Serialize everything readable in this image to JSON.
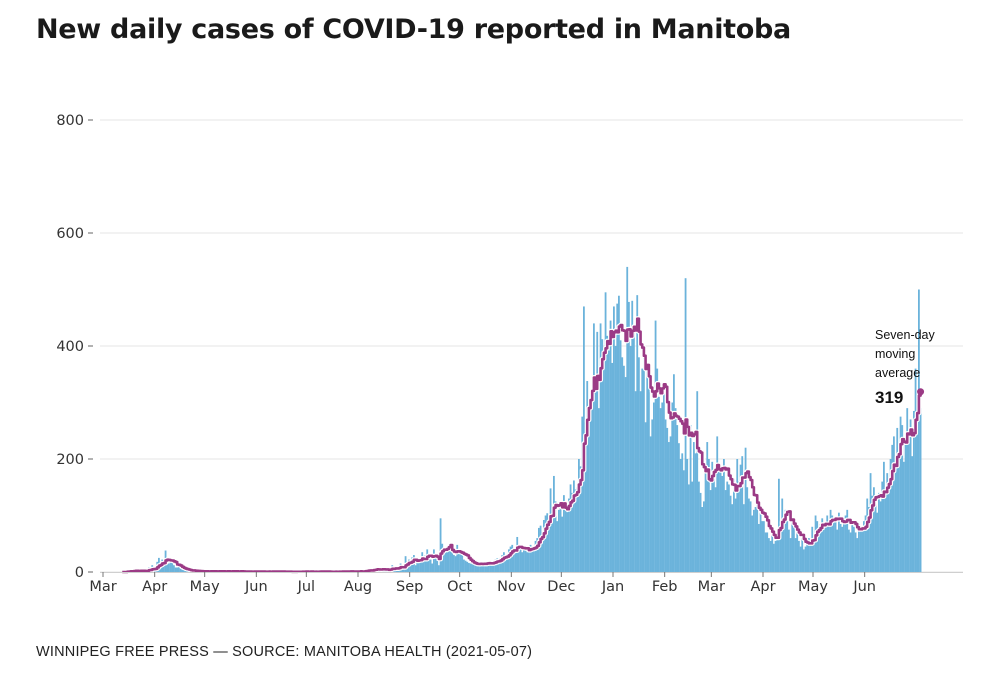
{
  "title": "New daily cases of COVID-19 reported in Manitoba",
  "footer": "WINNIPEG FREE PRESS — SOURCE: MANITOBA HEALTH (2021-05-07)",
  "colors": {
    "bars": "#6bb3db",
    "average_line": "#9b3a85",
    "grid": "#e6e6e6"
  },
  "annotation": {
    "lines": [
      "Seven-day",
      "moving",
      "average"
    ],
    "value": "319"
  },
  "chart_data": {
    "type": "bar",
    "title": "New daily cases of COVID-19 reported in Manitoba",
    "xlabel": "",
    "ylabel": "",
    "ylim": [
      0,
      800
    ],
    "yticks": [
      0,
      200,
      400,
      600,
      800
    ],
    "xticks": [
      "Mar",
      "Apr",
      "May",
      "Jun",
      "Jul",
      "Aug",
      "Sep",
      "Oct",
      "Nov",
      "Dec",
      "Jan",
      "Feb",
      "Mar",
      "Apr",
      "May",
      "Jun"
    ],
    "x_range": [
      "2020-03-01",
      "2021-06-30"
    ],
    "grid": true,
    "legend": "none",
    "series": [
      {
        "name": "Daily cases",
        "type": "bar",
        "x_start": "2020-03-12",
        "values": [
          0,
          0,
          0,
          2,
          2,
          4,
          1,
          2,
          4,
          0,
          1,
          3,
          4,
          1,
          0,
          5,
          8,
          4,
          12,
          6,
          5,
          18,
          25,
          18,
          22,
          17,
          38,
          14,
          15,
          20,
          16,
          12,
          8,
          8,
          10,
          6,
          4,
          4,
          2,
          2,
          3,
          3,
          2,
          3,
          1,
          1,
          0,
          1,
          2,
          1,
          2,
          1,
          0,
          2,
          1,
          2,
          1,
          0,
          2,
          1,
          1,
          1,
          1,
          2,
          0,
          1,
          2,
          1,
          1,
          1,
          0,
          2,
          1,
          1,
          0,
          1,
          1,
          0,
          0,
          2,
          1,
          1,
          1,
          0,
          0,
          1,
          0,
          1,
          2,
          0,
          1,
          1,
          0,
          0,
          1,
          2,
          0,
          1,
          0,
          0,
          0,
          1,
          0,
          0,
          1,
          1,
          0,
          0,
          2,
          0,
          1,
          1,
          0,
          1,
          0,
          0,
          1,
          0,
          2,
          1,
          1,
          0,
          1,
          0,
          1,
          0,
          0,
          1,
          1,
          0,
          1,
          1,
          2,
          0,
          0,
          1,
          1,
          2,
          1,
          0,
          1,
          0,
          1,
          3,
          0,
          2,
          3,
          5,
          4,
          3,
          2,
          5,
          6,
          8,
          4,
          3,
          5,
          2,
          4,
          6,
          3,
          8,
          12,
          5,
          6,
          4,
          10,
          15,
          7,
          12,
          28,
          18,
          22,
          15,
          26,
          30,
          12,
          17,
          22,
          25,
          35,
          20,
          30,
          40,
          28,
          22,
          15,
          40,
          25,
          20,
          12,
          95,
          50,
          34,
          40,
          35,
          42,
          38,
          35,
          30,
          28,
          48,
          36,
          32,
          30,
          22,
          20,
          18,
          16,
          15,
          14,
          14,
          12,
          12,
          16,
          18,
          14,
          15,
          14,
          17,
          15,
          14,
          18,
          20,
          22,
          24,
          20,
          25,
          30,
          35,
          27,
          30,
          40,
          45,
          48,
          42,
          35,
          62,
          38,
          40,
          35,
          45,
          38,
          35,
          40,
          48,
          45,
          42,
          55,
          60,
          78,
          82,
          70,
          92,
          100,
          104,
          95,
          148,
          88,
          170,
          125,
          90,
          110,
          120,
          98,
          136,
          118,
          106,
          130,
          155,
          140,
          162,
          146,
          150,
          200,
          187,
          275,
          470,
          265,
          338,
          296,
          300,
          300,
          440,
          330,
          425,
          290,
          440,
          412,
          380,
          495,
          418,
          392,
          445,
          370,
          470,
          400,
          475,
          489,
          410,
          380,
          365,
          345,
          540,
          478,
          400,
          480,
          430,
          320,
          490,
          380,
          320,
          360,
          380,
          265,
          370,
          350,
          240,
          270,
          300,
          445,
          360,
          310,
          290,
          300,
          320,
          270,
          255,
          230,
          240,
          300,
          350,
          290,
          260,
          228,
          200,
          210,
          180,
          520,
          200,
          155,
          260,
          160,
          230,
          210,
          320,
          160,
          140,
          115,
          125,
          180,
          230,
          200,
          145,
          195,
          165,
          150,
          240,
          180,
          185,
          170,
          200,
          145,
          160,
          155,
          135,
          120,
          165,
          130,
          200,
          160,
          190,
          205,
          120,
          220,
          150,
          130,
          125,
          100,
          110,
          115,
          130,
          85,
          105,
          90,
          90,
          70,
          70,
          60,
          55,
          65,
          50,
          55,
          70,
          165,
          85,
          130,
          95,
          110,
          90,
          75,
          60,
          90,
          80,
          60,
          70,
          55,
          45,
          60,
          40,
          45,
          50,
          60,
          55,
          80,
          65,
          100,
          90,
          70,
          85,
          95,
          75,
          80,
          100,
          85,
          110,
          100,
          95,
          90,
          75,
          105,
          85,
          80,
          90,
          100,
          110,
          75,
          70,
          90,
          80,
          70,
          60,
          85,
          75,
          80,
          90,
          100,
          130,
          115,
          175,
          135,
          150,
          120,
          105,
          140,
          125,
          160,
          195,
          145,
          175,
          150,
          200,
          225,
          240,
          180,
          255,
          210,
          275,
          260,
          195,
          230,
          290,
          245,
          270,
          205,
          285,
          360,
          245,
          500,
          290
        ]
      },
      {
        "name": "Seven-day moving average",
        "type": "line",
        "last_value": 319
      }
    ]
  }
}
